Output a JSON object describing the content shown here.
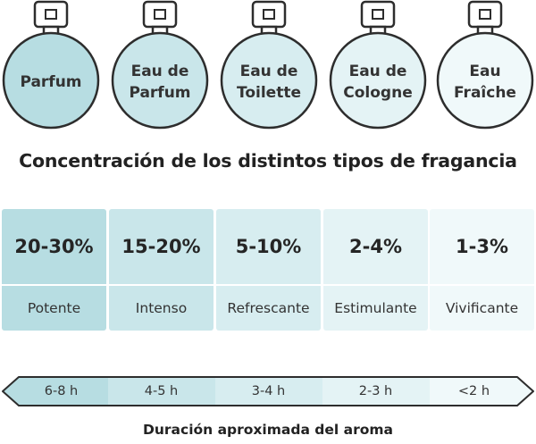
{
  "colors": {
    "level1": "#b7dde2",
    "level2": "#c9e6ea",
    "level3": "#d7edf0",
    "level4": "#e4f3f5",
    "level5": "#f0f9fa",
    "outline": "#2d2d2d"
  },
  "bottles": [
    {
      "label": "Parfum"
    },
    {
      "label": "Eau de\nParfum"
    },
    {
      "label": "Eau de\nToilette"
    },
    {
      "label": "Eau de\nCologne"
    },
    {
      "label": "Eau\nFraîche"
    }
  ],
  "title": "Concentración de los distintos tipos de fragancia",
  "levels": [
    {
      "concentration": "20-30%",
      "description": "Potente",
      "duration": "6-8 h"
    },
    {
      "concentration": "15-20%",
      "description": "Intenso",
      "duration": "4-5 h"
    },
    {
      "concentration": "5-10%",
      "description": "Refrescante",
      "duration": "3-4 h"
    },
    {
      "concentration": "2-4%",
      "description": "Estimulante",
      "duration": "2-3 h"
    },
    {
      "concentration": "1-3%",
      "description": "Vivificante",
      "duration": "<2 h"
    }
  ],
  "footer": "Duración aproximada del aroma"
}
